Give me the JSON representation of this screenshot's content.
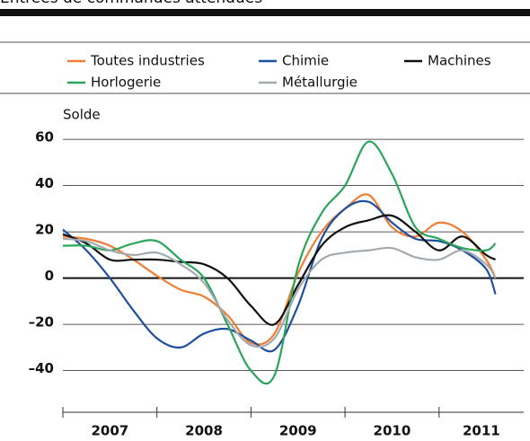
{
  "chart_data": {
    "type": "line",
    "title": "Entrées de commandes attendues",
    "y_label": "Solde",
    "x": [
      2007,
      2007.25,
      2007.5,
      2007.75,
      2008,
      2008.25,
      2008.5,
      2008.75,
      2009,
      2009.25,
      2009.5,
      2009.75,
      2010,
      2010.25,
      2010.5,
      2010.75,
      2011,
      2011.25,
      2011.5,
      2011.6
    ],
    "series": [
      {
        "name": "Toutes industries",
        "color": "#ef7d33",
        "values": [
          18,
          17,
          14,
          8,
          1,
          -5,
          -8,
          -16,
          -28,
          -24,
          2,
          20,
          30,
          36,
          22,
          18,
          24,
          20,
          8,
          0
        ]
      },
      {
        "name": "Chimie",
        "color": "#1f4f9e",
        "values": [
          21,
          12,
          0,
          -14,
          -26,
          -30,
          -24,
          -22,
          -27,
          -31,
          -12,
          17,
          30,
          33,
          24,
          17,
          16,
          12,
          4,
          -7
        ]
      },
      {
        "name": "Machines",
        "color": "#111111",
        "values": [
          19,
          15,
          8,
          8,
          8,
          7,
          6,
          0,
          -12,
          -20,
          -3,
          14,
          22,
          25,
          27,
          20,
          12,
          18,
          10,
          8
        ]
      },
      {
        "name": "Horlogerie",
        "color": "#2aa55a",
        "values": [
          14,
          14,
          12,
          15,
          16,
          8,
          0,
          -20,
          -40,
          -42,
          5,
          28,
          40,
          59,
          45,
          22,
          17,
          13,
          12,
          15
        ]
      },
      {
        "name": "Métallurgie",
        "color": "#a3a9b0",
        "values": [
          17,
          16,
          12,
          10,
          11,
          6,
          -2,
          -18,
          -29,
          -26,
          -5,
          8,
          11,
          12,
          13,
          9,
          8,
          12,
          6,
          0
        ]
      }
    ],
    "xlim": [
      2007,
      2011.9
    ],
    "xticks": [
      2007,
      2008,
      2009,
      2010,
      2011
    ],
    "ylim": [
      -58,
      62
    ],
    "yticks": [
      60,
      40,
      20,
      0,
      {
        "value": -20,
        "label": "–20"
      },
      {
        "value": -40,
        "label": "–40"
      }
    ],
    "grid": true
  }
}
